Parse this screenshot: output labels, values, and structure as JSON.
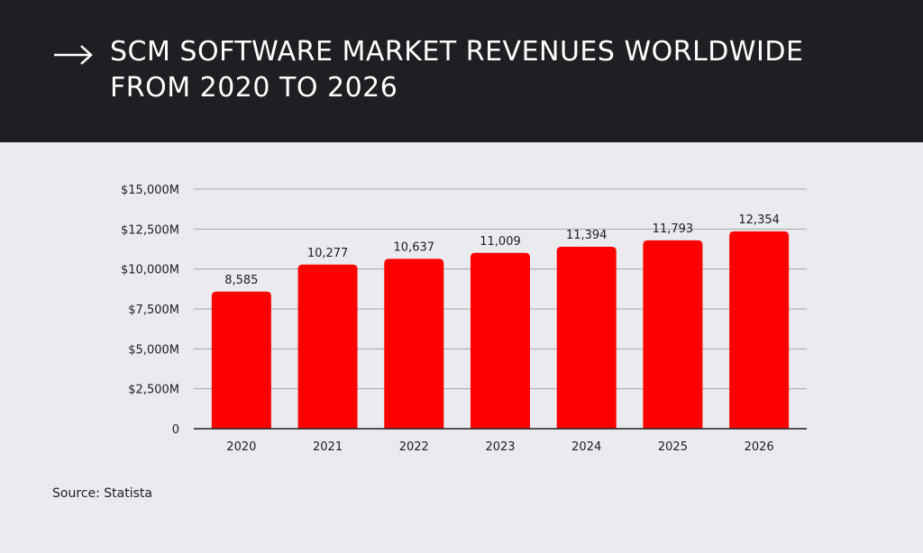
{
  "header": {
    "title": "SCM SOFTWARE MARKET REVENUES WORLDWIDE FROM 2020 TO 2026"
  },
  "icons": {
    "title_arrow": "arrow-right-icon"
  },
  "colors": {
    "header_bg": "#1f1e22",
    "page_bg": "#e9ebee",
    "bar": "#fe0000",
    "text": "#1f1e22"
  },
  "footer": {
    "source": "Source: Statista"
  },
  "chart_data": {
    "type": "bar",
    "title": "SCM SOFTWARE MARKET REVENUES WORLDWIDE FROM 2020 TO 2026",
    "xlabel": "",
    "ylabel": "",
    "categories": [
      "2020",
      "2021",
      "2022",
      "2023",
      "2024",
      "2025",
      "2026"
    ],
    "values": [
      8585,
      10277,
      10637,
      11009,
      11394,
      11793,
      12354
    ],
    "data_labels": [
      "8,585",
      "10,277",
      "10,637",
      "11,009",
      "11,394",
      "11,793",
      "12,354"
    ],
    "ylim": [
      0,
      15000
    ],
    "yticks": [
      0,
      2500,
      5000,
      7500,
      10000,
      12500,
      15000
    ],
    "ytick_labels": [
      "0",
      "$2,500M",
      "$5,000M",
      "$7,500M",
      "$10,000M",
      "$12,500M",
      "$15,000M"
    ],
    "grid": true,
    "legend": "none"
  }
}
